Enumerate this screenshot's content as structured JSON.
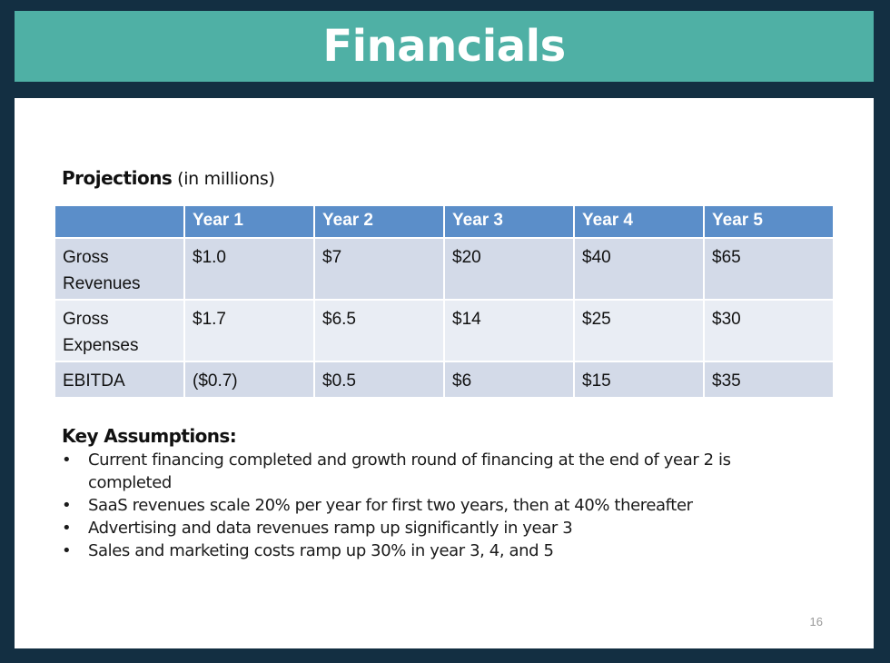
{
  "title": "Financials",
  "projections": {
    "heading_bold": "Projections",
    "heading_sub": " (in millions)",
    "columns": [
      "",
      "Year 1",
      "Year 2",
      "Year 3",
      "Year 4",
      "Year 5"
    ],
    "rows": [
      {
        "label": "Gross Revenues",
        "values": [
          "$1.0",
          "$7",
          "$20",
          "$40",
          "$65"
        ]
      },
      {
        "label": "Gross Expenses",
        "values": [
          "$1.7",
          "$6.5",
          "$14",
          "$25",
          "$30"
        ]
      },
      {
        "label": "EBITDA",
        "values": [
          "($0.7)",
          "$0.5",
          "$6",
          "$15",
          "$35"
        ]
      }
    ]
  },
  "key_assumptions": {
    "heading": "Key Assumptions:",
    "bullet": "•",
    "items": [
      "Current financing completed and growth round of financing at the end of year 2 is completed",
      "SaaS revenues scale 20% per year for first two years, then at 40% thereafter",
      "Advertising and data revenues ramp up significantly in year 3",
      "Sales and marketing costs ramp up 30% in year 3, 4, and 5"
    ]
  },
  "page_number": "16",
  "colors": {
    "background": "#132f42",
    "title_bar": "#4fb0a5",
    "table_header": "#5b8ec9",
    "row_dark": "#d3dae8",
    "row_light": "#e9edf4"
  }
}
